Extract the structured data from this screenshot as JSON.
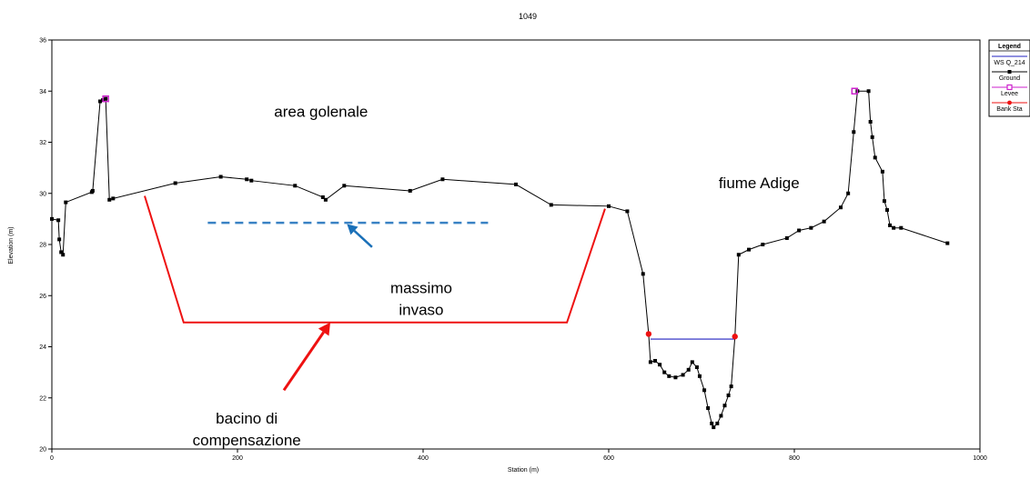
{
  "chart_data": {
    "type": "line",
    "title": "1049",
    "xlabel": "Station (m)",
    "ylabel": "Elevation (m)",
    "xlim": [
      0,
      1000
    ],
    "ylim": [
      20,
      36
    ],
    "x_ticks": [
      0,
      200,
      400,
      600,
      800,
      1000
    ],
    "y_ticks": [
      20,
      22,
      24,
      26,
      28,
      30,
      32,
      34,
      36
    ],
    "grid": false,
    "legend_position": "top-right",
    "legend": {
      "title": "Legend",
      "entries": [
        {
          "label": "WS Q_214",
          "color": "#2020c0",
          "marker": "none"
        },
        {
          "label": "Ground",
          "color": "#000000",
          "marker": "square"
        },
        {
          "label": "Levee",
          "color": "#cc22cc",
          "marker": "square-open"
        },
        {
          "label": "Bank Sta",
          "color": "#ee1111",
          "marker": "circle"
        }
      ]
    },
    "series": [
      {
        "name": "Ground",
        "color": "#000000",
        "points": [
          [
            0,
            29.0
          ],
          [
            7,
            28.95
          ],
          [
            8,
            28.2
          ],
          [
            10,
            27.7
          ],
          [
            12,
            27.6
          ],
          [
            15,
            29.65
          ],
          [
            43,
            30.05
          ],
          [
            44,
            30.1
          ],
          [
            52,
            33.6
          ],
          [
            55,
            33.65
          ],
          [
            58,
            33.7
          ],
          [
            62,
            29.75
          ],
          [
            66,
            29.8
          ],
          [
            133,
            30.4
          ],
          [
            182,
            30.65
          ],
          [
            210,
            30.55
          ],
          [
            215,
            30.5
          ],
          [
            262,
            30.3
          ],
          [
            292,
            29.85
          ],
          [
            295,
            29.75
          ],
          [
            315,
            30.3
          ],
          [
            386,
            30.1
          ],
          [
            421,
            30.55
          ],
          [
            500,
            30.35
          ],
          [
            538,
            29.55
          ],
          [
            600,
            29.5
          ],
          [
            620,
            29.3
          ],
          [
            637,
            26.85
          ],
          [
            643,
            24.5
          ],
          [
            645,
            23.4
          ],
          [
            650,
            23.45
          ],
          [
            655,
            23.3
          ],
          [
            660,
            23.0
          ],
          [
            665,
            22.85
          ],
          [
            672,
            22.8
          ],
          [
            680,
            22.9
          ],
          [
            686,
            23.1
          ],
          [
            690,
            23.4
          ],
          [
            695,
            23.2
          ],
          [
            698,
            22.85
          ],
          [
            703,
            22.3
          ],
          [
            707,
            21.6
          ],
          [
            711,
            21.0
          ],
          [
            713,
            20.85
          ],
          [
            717,
            21.0
          ],
          [
            721,
            21.3
          ],
          [
            725,
            21.7
          ],
          [
            729,
            22.1
          ],
          [
            732,
            22.45
          ],
          [
            736,
            24.4
          ],
          [
            740,
            27.6
          ],
          [
            751,
            27.8
          ],
          [
            766,
            28.0
          ],
          [
            792,
            28.25
          ],
          [
            805,
            28.55
          ],
          [
            818,
            28.65
          ],
          [
            832,
            28.9
          ],
          [
            850,
            29.45
          ],
          [
            858,
            30.0
          ],
          [
            864,
            32.4
          ],
          [
            868,
            34.0
          ],
          [
            880,
            34.0
          ],
          [
            882,
            32.8
          ],
          [
            884,
            32.2
          ],
          [
            887,
            31.4
          ],
          [
            895,
            30.85
          ],
          [
            897,
            29.7
          ],
          [
            900,
            29.35
          ],
          [
            903,
            28.75
          ],
          [
            907,
            28.65
          ],
          [
            915,
            28.65
          ],
          [
            965,
            28.05
          ]
        ]
      },
      {
        "name": "WS Q_214",
        "color": "#2020c0",
        "points": [
          [
            645,
            24.3
          ],
          [
            736,
            24.3
          ]
        ]
      },
      {
        "name": "Levee",
        "color": "#cc22cc",
        "points": [
          [
            58,
            33.7
          ],
          [
            865,
            34.0
          ]
        ]
      },
      {
        "name": "Bank Sta",
        "color": "#ee1111",
        "points": [
          [
            643,
            24.5
          ],
          [
            736,
            24.4
          ]
        ]
      }
    ],
    "annotations": [
      {
        "id": "area-golenale",
        "lines": [
          "area golenale"
        ],
        "x": 290,
        "y": 33.0,
        "color": "#000000"
      },
      {
        "id": "fiume-adige",
        "lines": [
          "fiume Adige"
        ],
        "x": 762,
        "y": 30.2,
        "color": "#000000"
      },
      {
        "id": "massimo-invaso",
        "lines": [
          "massimo",
          "invaso"
        ],
        "x": 398,
        "y": 26.1,
        "color": "#000000"
      },
      {
        "id": "bacino-compensazione",
        "lines": [
          "bacino di",
          "compensazione"
        ],
        "x": 210,
        "y": 21.0,
        "color": "#000000"
      }
    ],
    "overlay_shapes": {
      "basin_outline": {
        "color": "#ee1111",
        "points": [
          [
            100,
            29.9
          ],
          [
            142,
            24.95
          ],
          [
            555,
            24.95
          ],
          [
            596,
            29.4
          ]
        ]
      },
      "max_level_line": {
        "color": "#3a82c4",
        "dashed": true,
        "points": [
          [
            168,
            28.85
          ],
          [
            470,
            28.85
          ]
        ]
      },
      "arrow_max_level": {
        "color": "#1a70b8",
        "from": [
          345,
          27.9
        ],
        "to": [
          318,
          28.8
        ]
      },
      "arrow_basin": {
        "color": "#ee1111",
        "from": [
          250,
          22.3
        ],
        "to": [
          300,
          24.95
        ]
      }
    }
  }
}
